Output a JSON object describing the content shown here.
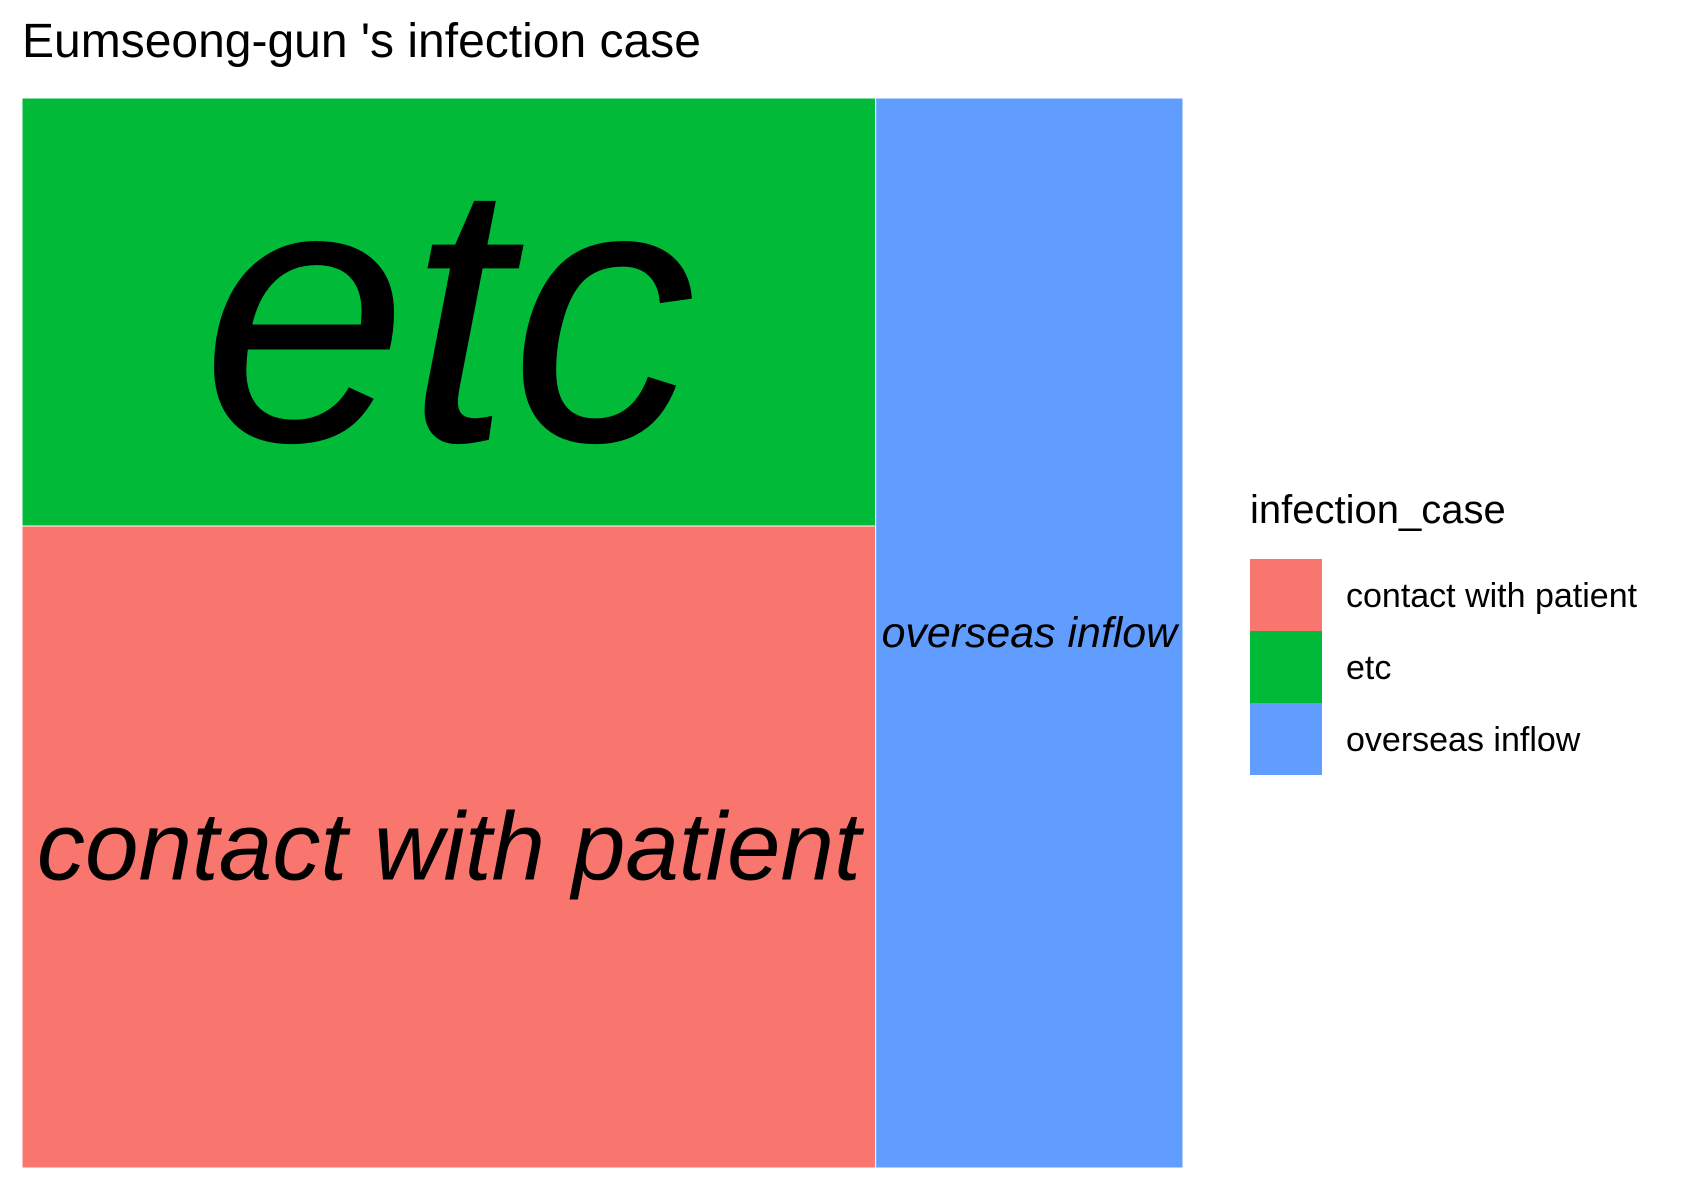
{
  "chart_data": {
    "type": "treemap",
    "title": "Eumseong-gun 's infection case",
    "legend": {
      "title": "infection_case",
      "placement": "right"
    },
    "categories": [
      "contact with patient",
      "etc",
      "overseas inflow"
    ],
    "values": [
      7.5,
      5,
      4.5
    ],
    "colors": [
      "#F8766D",
      "#00BA38",
      "#619CFF"
    ]
  }
}
